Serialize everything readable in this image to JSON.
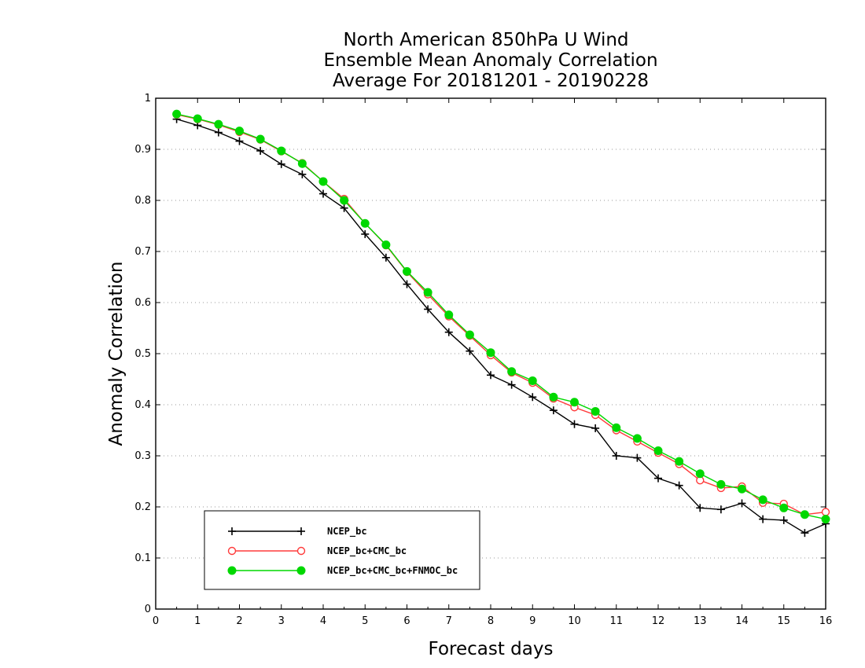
{
  "chart_data": {
    "type": "line",
    "title_lines": [
      "North American 850hPa U Wind",
      "Ensemble Mean Anomaly Correlation",
      "Average For 20181201 - 20190228"
    ],
    "xlabel": "Forecast days",
    "ylabel": "Anomaly Correlation",
    "xlim": [
      0,
      16
    ],
    "ylim": [
      0,
      1
    ],
    "x_ticks": [
      "0",
      "1",
      "2",
      "3",
      "4",
      "5",
      "6",
      "7",
      "8",
      "9",
      "10",
      "11",
      "12",
      "13",
      "14",
      "15",
      "16"
    ],
    "y_ticks": [
      "0",
      "0.1",
      "0.2",
      "0.3",
      "0.4",
      "0.5",
      "0.6",
      "0.7",
      "0.8",
      "0.9",
      "1"
    ],
    "grid": "horizontal dotted",
    "legend_position": "bottom-left",
    "x": [
      0.5,
      1,
      1.5,
      2,
      2.5,
      3,
      3.5,
      4,
      4.5,
      5,
      5.5,
      6,
      6.5,
      7,
      7.5,
      8,
      8.5,
      9,
      9.5,
      10,
      10.5,
      11,
      11.5,
      12,
      12.5,
      13,
      13.5,
      14,
      14.5,
      15,
      15.5,
      16
    ],
    "series": [
      {
        "name": "NCEP_bc",
        "color": "#000000",
        "marker": "plus",
        "values": [
          0.959,
          0.947,
          0.933,
          0.916,
          0.897,
          0.871,
          0.851,
          0.813,
          0.785,
          0.734,
          0.688,
          0.636,
          0.587,
          0.542,
          0.505,
          0.458,
          0.439,
          0.415,
          0.389,
          0.362,
          0.354,
          0.3,
          0.296,
          0.256,
          0.242,
          0.198,
          0.195,
          0.207,
          0.176,
          0.174,
          0.149,
          0.167
        ]
      },
      {
        "name": "NCEP_bc+CMC_bc",
        "color": "#ff3b3b",
        "marker": "open-circle",
        "values": [
          0.968,
          0.959,
          0.948,
          0.934,
          0.919,
          0.896,
          0.873,
          0.837,
          0.803,
          0.755,
          0.712,
          0.66,
          0.616,
          0.573,
          0.535,
          0.497,
          0.463,
          0.443,
          0.412,
          0.395,
          0.38,
          0.35,
          0.328,
          0.306,
          0.284,
          0.252,
          0.237,
          0.24,
          0.208,
          0.206,
          0.185,
          0.19
        ]
      },
      {
        "name": "NCEP_bc+CMC_bc+FNMOC_bc",
        "color": "#00d800",
        "marker": "filled-circle",
        "values": [
          0.969,
          0.96,
          0.949,
          0.936,
          0.92,
          0.897,
          0.872,
          0.837,
          0.8,
          0.755,
          0.713,
          0.661,
          0.62,
          0.576,
          0.537,
          0.502,
          0.465,
          0.447,
          0.415,
          0.405,
          0.387,
          0.355,
          0.334,
          0.31,
          0.289,
          0.265,
          0.244,
          0.235,
          0.214,
          0.198,
          0.185,
          0.176
        ]
      }
    ]
  }
}
